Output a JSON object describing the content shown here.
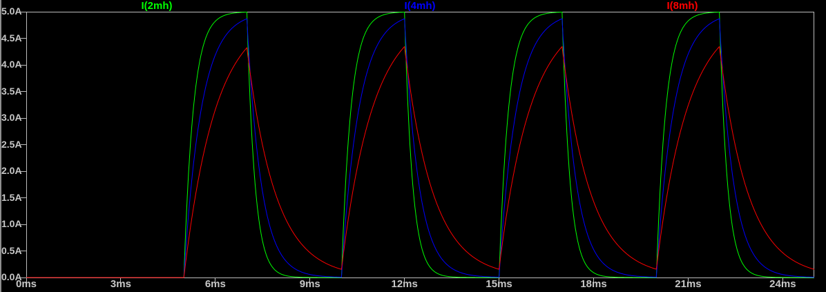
{
  "app": {
    "kind": "spice-waveform-viewer",
    "background_color": "#000000",
    "axis_color": "#bebebe",
    "label_color": "#c8c8c8"
  },
  "chart_data": {
    "type": "line",
    "title": "",
    "legend_position": "top",
    "grid": false,
    "x_axis": {
      "unit": "ms",
      "min_ms": 0,
      "max_ms": 25,
      "tick_step_ms": 3,
      "tick_values_ms": [
        0,
        3,
        6,
        9,
        12,
        15,
        18,
        21,
        24
      ],
      "tick_labels": [
        "0ms",
        "3ms",
        "6ms",
        "9ms",
        "12ms",
        "15ms",
        "18ms",
        "21ms",
        "24ms"
      ]
    },
    "y_axis": {
      "unit": "A",
      "min_a": 0,
      "max_a": 5,
      "tick_step_a": 0.5,
      "tick_values_a": [
        5.0,
        4.5,
        4.0,
        3.5,
        3.0,
        2.5,
        2.0,
        1.5,
        1.0,
        0.5,
        0.0
      ],
      "tick_labels": [
        "5.0A",
        "4.5A",
        "4.0A",
        "3.5A",
        "3.0A",
        "2.5A",
        "2.0A",
        "1.5A",
        "1.0A",
        "0.5A",
        "0.0A"
      ]
    },
    "excitation_pulse": {
      "target_a": 5.0,
      "first_rise_ms": 5.0,
      "on_width_ms": 2.0,
      "period_ms": 5.0,
      "num_pulses": 4
    },
    "series": [
      {
        "name": "I(2mh)",
        "color": "#00ff00",
        "tau_rise_ms": 0.3,
        "tau_fall_ms": 0.25,
        "peak_a": 5.0,
        "start_a": 0.0
      },
      {
        "name": "I(4mh)",
        "color": "#0000ff",
        "tau_rise_ms": 0.55,
        "tau_fall_ms": 0.45,
        "peak_a": 4.9,
        "start_a": 0.0
      },
      {
        "name": "I(8mh)",
        "color": "#ff0000",
        "tau_rise_ms": 1.0,
        "tau_fall_ms": 0.9,
        "peak_a": 4.3,
        "start_a": 0.0
      }
    ]
  }
}
